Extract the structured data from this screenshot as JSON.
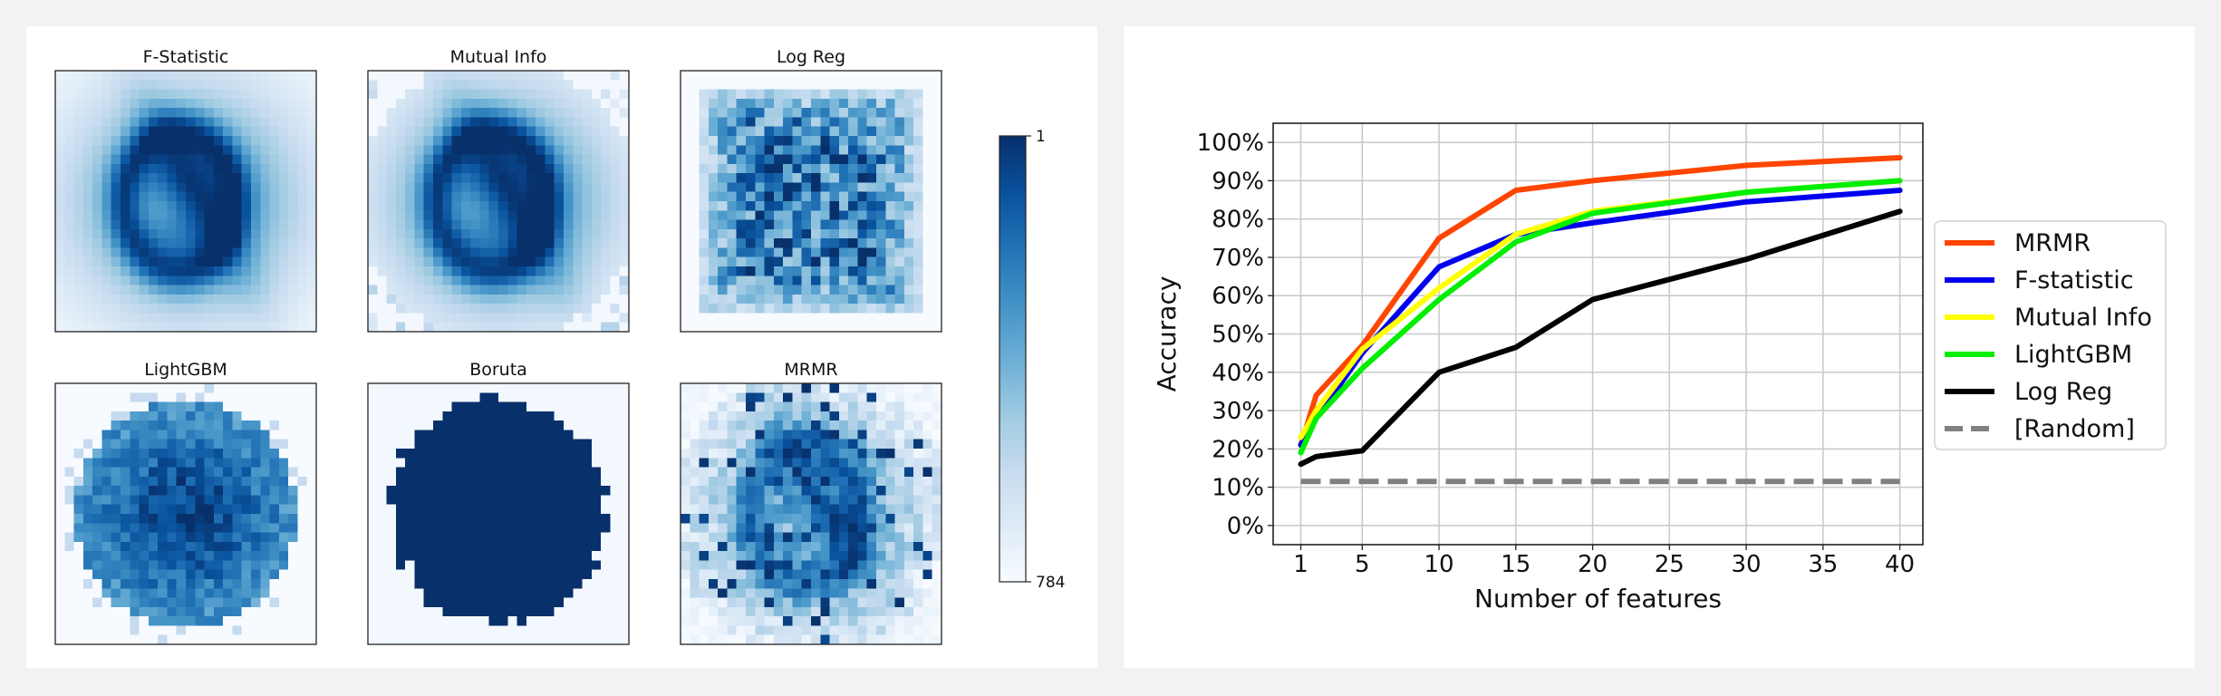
{
  "heatmaps": {
    "colorbar": {
      "top_label": "1",
      "bottom_label": "784",
      "colormap": "Blues"
    },
    "panels": [
      {
        "title": "F-Statistic",
        "pattern": "fstat"
      },
      {
        "title": "Mutual Info",
        "pattern": "mutual"
      },
      {
        "title": "Log Reg",
        "pattern": "logreg"
      },
      {
        "title": "LightGBM",
        "pattern": "lgbm"
      },
      {
        "title": "Boruta",
        "pattern": "boruta"
      },
      {
        "title": "MRMR",
        "pattern": "mrmr"
      }
    ]
  },
  "chart_data": {
    "type": "line",
    "xlabel": "Number of features",
    "ylabel": "Accuracy",
    "x_ticks": [
      1,
      5,
      10,
      15,
      20,
      25,
      30,
      35,
      40
    ],
    "y_ticks": [
      0,
      10,
      20,
      30,
      40,
      50,
      60,
      70,
      80,
      90,
      100
    ],
    "y_tick_labels": [
      "0%",
      "10%",
      "20%",
      "30%",
      "40%",
      "50%",
      "60%",
      "70%",
      "80%",
      "90%",
      "100%"
    ],
    "xlim": [
      -0.8,
      41.5
    ],
    "ylim": [
      -5,
      105
    ],
    "grid": true,
    "legend_position": "right",
    "x": [
      1,
      2,
      5,
      10,
      15,
      20,
      30,
      40
    ],
    "series": [
      {
        "name": "MRMR",
        "color": "#ff4500",
        "dashed": false,
        "values": [
          21,
          34,
          47,
          75,
          87.5,
          90,
          94,
          96
        ]
      },
      {
        "name": "F-statistic",
        "color": "#0000ee",
        "dashed": false,
        "values": [
          21,
          28,
          45,
          67.5,
          76,
          79,
          84.5,
          87.5
        ]
      },
      {
        "name": "Mutual Info",
        "color": "#ffff00",
        "dashed": false,
        "values": [
          23,
          30,
          46,
          62,
          76,
          82,
          87,
          90
        ]
      },
      {
        "name": "LightGBM",
        "color": "#00ee00",
        "dashed": false,
        "values": [
          19,
          28,
          41,
          59,
          74,
          81.5,
          87,
          90
        ]
      },
      {
        "name": "Log Reg",
        "color": "#000000",
        "dashed": false,
        "values": [
          16,
          18,
          19.5,
          40,
          46.5,
          59,
          69.5,
          82
        ]
      },
      {
        "name": "[Random]",
        "color": "#808080",
        "dashed": true,
        "values": [
          11.5,
          11.5,
          11.5,
          11.5,
          11.5,
          11.5,
          11.5,
          11.5
        ]
      }
    ]
  }
}
